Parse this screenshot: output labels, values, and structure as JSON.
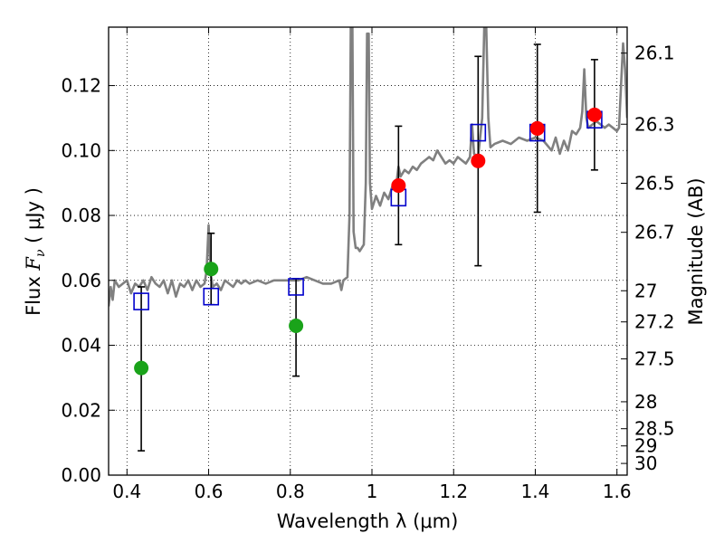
{
  "chart_data": {
    "type": "scatter",
    "xlabel": "Wavelength  λ (μm)",
    "ylabel_prefix": "Flux  ",
    "ylabel_symbol": "F",
    "ylabel_sub": "ν",
    "ylabel_suffix": "  ( μJy )",
    "y2label": "Magnitude (AB)",
    "xlim": [
      0.355,
      1.625
    ],
    "ylim": [
      0.0,
      0.138
    ],
    "grid": true,
    "x_ticks": [
      {
        "value": 0.4,
        "label": "0.4"
      },
      {
        "value": 0.6,
        "label": "0.6"
      },
      {
        "value": 0.8,
        "label": "0.8"
      },
      {
        "value": 1.0,
        "label": "1"
      },
      {
        "value": 1.2,
        "label": "1.2"
      },
      {
        "value": 1.4,
        "label": "1.4"
      },
      {
        "value": 1.6,
        "label": "1.6"
      }
    ],
    "y_ticks": [
      {
        "value": 0.0,
        "label": "0.00"
      },
      {
        "value": 0.02,
        "label": "0.02"
      },
      {
        "value": 0.04,
        "label": "0.04"
      },
      {
        "value": 0.06,
        "label": "0.06"
      },
      {
        "value": 0.08,
        "label": "0.08"
      },
      {
        "value": 0.1,
        "label": "0.10"
      },
      {
        "value": 0.12,
        "label": "0.12"
      }
    ],
    "y2_ticks": [
      {
        "label": "26.1",
        "flux": 0.13
      },
      {
        "label": "26.3",
        "flux": 0.1081
      },
      {
        "label": "26.5",
        "flux": 0.0899
      },
      {
        "label": "26.7",
        "flux": 0.0748
      },
      {
        "label": "27",
        "flux": 0.0568
      },
      {
        "label": "27.2",
        "flux": 0.0472
      },
      {
        "label": "27.5",
        "flux": 0.0358
      },
      {
        "label": "28",
        "flux": 0.0226
      },
      {
        "label": "28.5",
        "flux": 0.0143
      },
      {
        "label": "29",
        "flux": 0.009
      },
      {
        "label": "30",
        "flux": 0.0036
      }
    ],
    "series": [
      {
        "kind": "green-circles",
        "color": "#1aa31a",
        "points": [
          {
            "x": 0.435,
            "y": 0.033,
            "err_lo": 0.0075,
            "err_hi": 0.058
          },
          {
            "x": 0.606,
            "y": 0.0635,
            "err_lo": 0.0525,
            "err_hi": 0.0745
          },
          {
            "x": 0.814,
            "y": 0.046,
            "err_lo": 0.0305,
            "err_hi": 0.0605
          }
        ]
      },
      {
        "kind": "red-circles",
        "color": "#ff0000",
        "points": [
          {
            "x": 1.065,
            "y": 0.0892,
            "err_lo": 0.071,
            "err_hi": 0.1075
          },
          {
            "x": 1.26,
            "y": 0.0968,
            "err_lo": 0.0645,
            "err_hi": 0.129
          },
          {
            "x": 1.405,
            "y": 0.1068,
            "err_lo": 0.081,
            "err_hi": 0.1327
          },
          {
            "x": 1.545,
            "y": 0.111,
            "err_lo": 0.094,
            "err_hi": 0.128
          }
        ]
      },
      {
        "kind": "blue-open-squares",
        "color": "#0000cc",
        "points": [
          {
            "x": 0.435,
            "y": 0.0535
          },
          {
            "x": 0.606,
            "y": 0.055
          },
          {
            "x": 0.814,
            "y": 0.058
          },
          {
            "x": 1.065,
            "y": 0.0855
          },
          {
            "x": 1.26,
            "y": 0.1055
          },
          {
            "x": 1.405,
            "y": 0.1055
          },
          {
            "x": 1.545,
            "y": 0.1095
          }
        ]
      },
      {
        "kind": "model-spectrum",
        "color": "#808080",
        "points": [
          [
            0.355,
            0.052
          ],
          [
            0.36,
            0.058
          ],
          [
            0.365,
            0.054
          ],
          [
            0.37,
            0.06
          ],
          [
            0.38,
            0.058
          ],
          [
            0.39,
            0.059
          ],
          [
            0.4,
            0.06
          ],
          [
            0.41,
            0.056
          ],
          [
            0.42,
            0.059
          ],
          [
            0.43,
            0.058
          ],
          [
            0.44,
            0.06
          ],
          [
            0.45,
            0.057
          ],
          [
            0.46,
            0.061
          ],
          [
            0.47,
            0.059
          ],
          [
            0.48,
            0.058
          ],
          [
            0.49,
            0.06
          ],
          [
            0.5,
            0.056
          ],
          [
            0.51,
            0.06
          ],
          [
            0.52,
            0.055
          ],
          [
            0.53,
            0.059
          ],
          [
            0.54,
            0.058
          ],
          [
            0.55,
            0.06
          ],
          [
            0.56,
            0.057
          ],
          [
            0.57,
            0.06
          ],
          [
            0.58,
            0.058
          ],
          [
            0.59,
            0.059
          ],
          [
            0.595,
            0.063
          ],
          [
            0.6,
            0.077
          ],
          [
            0.605,
            0.062
          ],
          [
            0.61,
            0.058
          ],
          [
            0.62,
            0.059
          ],
          [
            0.63,
            0.057
          ],
          [
            0.64,
            0.06
          ],
          [
            0.65,
            0.059
          ],
          [
            0.66,
            0.058
          ],
          [
            0.67,
            0.06
          ],
          [
            0.68,
            0.059
          ],
          [
            0.69,
            0.06
          ],
          [
            0.7,
            0.059
          ],
          [
            0.72,
            0.06
          ],
          [
            0.74,
            0.059
          ],
          [
            0.76,
            0.06
          ],
          [
            0.78,
            0.06
          ],
          [
            0.8,
            0.06
          ],
          [
            0.82,
            0.06
          ],
          [
            0.84,
            0.061
          ],
          [
            0.86,
            0.06
          ],
          [
            0.88,
            0.059
          ],
          [
            0.9,
            0.059
          ],
          [
            0.92,
            0.06
          ],
          [
            0.925,
            0.057
          ],
          [
            0.93,
            0.06
          ],
          [
            0.94,
            0.061
          ],
          [
            0.945,
            0.08
          ],
          [
            0.948,
            0.138
          ],
          [
            0.952,
            0.138
          ],
          [
            0.955,
            0.075
          ],
          [
            0.96,
            0.07
          ],
          [
            0.965,
            0.07
          ],
          [
            0.97,
            0.069
          ],
          [
            0.975,
            0.07
          ],
          [
            0.98,
            0.071
          ],
          [
            0.985,
            0.09
          ],
          [
            0.988,
            0.136
          ],
          [
            0.992,
            0.136
          ],
          [
            0.995,
            0.09
          ],
          [
            1.0,
            0.082
          ],
          [
            1.01,
            0.086
          ],
          [
            1.02,
            0.083
          ],
          [
            1.03,
            0.087
          ],
          [
            1.04,
            0.085
          ],
          [
            1.05,
            0.089
          ],
          [
            1.06,
            0.09
          ],
          [
            1.065,
            0.095
          ],
          [
            1.07,
            0.092
          ],
          [
            1.08,
            0.094
          ],
          [
            1.09,
            0.093
          ],
          [
            1.1,
            0.095
          ],
          [
            1.11,
            0.094
          ],
          [
            1.12,
            0.096
          ],
          [
            1.13,
            0.097
          ],
          [
            1.14,
            0.098
          ],
          [
            1.15,
            0.097
          ],
          [
            1.16,
            0.1
          ],
          [
            1.17,
            0.098
          ],
          [
            1.18,
            0.096
          ],
          [
            1.19,
            0.097
          ],
          [
            1.2,
            0.096
          ],
          [
            1.21,
            0.098
          ],
          [
            1.22,
            0.097
          ],
          [
            1.23,
            0.096
          ],
          [
            1.24,
            0.098
          ],
          [
            1.245,
            0.108
          ],
          [
            1.25,
            0.099
          ],
          [
            1.26,
            0.098
          ],
          [
            1.27,
            0.11
          ],
          [
            1.275,
            0.138
          ],
          [
            1.28,
            0.138
          ],
          [
            1.285,
            0.11
          ],
          [
            1.29,
            0.101
          ],
          [
            1.3,
            0.102
          ],
          [
            1.32,
            0.103
          ],
          [
            1.34,
            0.102
          ],
          [
            1.36,
            0.104
          ],
          [
            1.38,
            0.103
          ],
          [
            1.4,
            0.104
          ],
          [
            1.42,
            0.103
          ],
          [
            1.44,
            0.1
          ],
          [
            1.45,
            0.104
          ],
          [
            1.46,
            0.099
          ],
          [
            1.47,
            0.103
          ],
          [
            1.48,
            0.1
          ],
          [
            1.49,
            0.106
          ],
          [
            1.5,
            0.105
          ],
          [
            1.51,
            0.107
          ],
          [
            1.515,
            0.112
          ],
          [
            1.52,
            0.125
          ],
          [
            1.525,
            0.11
          ],
          [
            1.53,
            0.107
          ],
          [
            1.54,
            0.108
          ],
          [
            1.55,
            0.109
          ],
          [
            1.56,
            0.108
          ],
          [
            1.57,
            0.107
          ],
          [
            1.58,
            0.108
          ],
          [
            1.59,
            0.107
          ],
          [
            1.6,
            0.106
          ],
          [
            1.605,
            0.107
          ],
          [
            1.61,
            0.12
          ],
          [
            1.615,
            0.133
          ],
          [
            1.62,
            0.125
          ],
          [
            1.625,
            0.11
          ]
        ]
      }
    ]
  }
}
